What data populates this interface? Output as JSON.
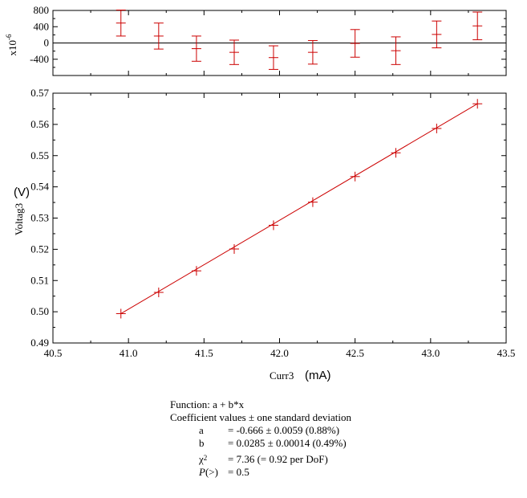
{
  "chart_data": [
    {
      "type": "scatter",
      "panel": "residuals",
      "x": [
        40.95,
        41.2,
        41.45,
        41.7,
        41.96,
        42.22,
        42.5,
        42.77,
        43.04,
        43.31
      ],
      "y": [
        490,
        170,
        -140,
        -230,
        -360,
        -230,
        -10,
        -190,
        210,
        420
      ],
      "yerr": [
        320,
        320,
        310,
        300,
        290,
        290,
        340,
        340,
        330,
        340
      ],
      "ylim": [
        -800,
        800
      ],
      "xlim": [
        40.5,
        43.5
      ],
      "yticks": [
        "800",
        "400",
        "0",
        "-400"
      ],
      "ylabel": "x10",
      "ylabel_exp": "-6",
      "zero_line": true,
      "color": "#cc0000"
    },
    {
      "type": "scatter",
      "panel": "main",
      "x": [
        40.95,
        41.2,
        41.45,
        41.7,
        41.96,
        42.22,
        42.5,
        42.77,
        43.04,
        43.31
      ],
      "y": [
        0.4994,
        0.5062,
        0.5131,
        0.5201,
        0.5277,
        0.5351,
        0.5433,
        0.5509,
        0.5587,
        0.5666
      ],
      "fit_line": {
        "x_start": 40.95,
        "x_end": 43.31,
        "a": -0.666,
        "b": 0.0285
      },
      "xlim": [
        40.5,
        43.5
      ],
      "ylim": [
        0.49,
        0.57
      ],
      "xticks": [
        "40.5",
        "41.0",
        "41.5",
        "42.0",
        "42.5",
        "43.0",
        "43.5"
      ],
      "yticks": [
        "0.57",
        "0.56",
        "0.55",
        "0.54",
        "0.53",
        "0.52",
        "0.51",
        "0.50",
        "0.49"
      ],
      "xlabel": "Curr3",
      "xunit": "(mA)",
      "ylabel": "Voltag3",
      "yunit": "(V)",
      "color": "#cc0000"
    }
  ],
  "fit": {
    "function": "Function: a + b*x",
    "header": "Coefficient values ± one standard deviation",
    "rows": [
      {
        "name": "a",
        "value": "= -0.666 ± 0.0059  (0.88%)"
      },
      {
        "name": "b",
        "value": "= 0.0285 ± 0.00014  (0.49%)"
      }
    ],
    "chi_name": "χ",
    "chi_exp": "2",
    "chi_value": "= 7.36 (= 0.92 per DoF)",
    "p_name": "P",
    "p_suffix": "(>)",
    "p_value": "= 0.5"
  }
}
